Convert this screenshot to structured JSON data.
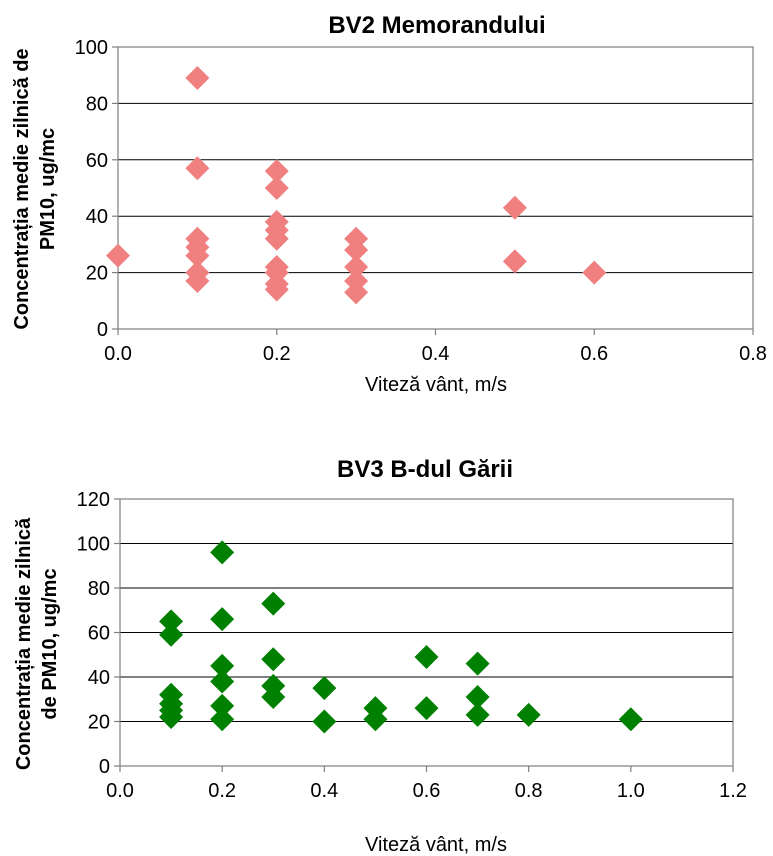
{
  "chart_data": [
    {
      "type": "scatter",
      "title": "BV2 Memorandului",
      "xlabel": "Viteză vânt, m/s",
      "ylabel_lines": [
        "Concentrația medie zilnică de",
        "PM10, ug/mc"
      ],
      "xlim": [
        0,
        0.8
      ],
      "ylim": [
        0,
        100
      ],
      "xticks": [
        "0.0",
        "0.2",
        "0.4",
        "0.6",
        "0.8"
      ],
      "yticks": [
        "0",
        "20",
        "40",
        "60",
        "80",
        "100"
      ],
      "grid": "horizontal",
      "marker": "diamond",
      "color": "#f08080",
      "points": [
        {
          "x": 0.0,
          "y": 26
        },
        {
          "x": 0.1,
          "y": 89
        },
        {
          "x": 0.1,
          "y": 57
        },
        {
          "x": 0.1,
          "y": 32
        },
        {
          "x": 0.1,
          "y": 29
        },
        {
          "x": 0.1,
          "y": 26
        },
        {
          "x": 0.1,
          "y": 20
        },
        {
          "x": 0.1,
          "y": 17
        },
        {
          "x": 0.2,
          "y": 56
        },
        {
          "x": 0.2,
          "y": 50
        },
        {
          "x": 0.2,
          "y": 38
        },
        {
          "x": 0.2,
          "y": 35
        },
        {
          "x": 0.2,
          "y": 32
        },
        {
          "x": 0.2,
          "y": 22
        },
        {
          "x": 0.2,
          "y": 20
        },
        {
          "x": 0.2,
          "y": 16
        },
        {
          "x": 0.2,
          "y": 14
        },
        {
          "x": 0.3,
          "y": 32
        },
        {
          "x": 0.3,
          "y": 28
        },
        {
          "x": 0.3,
          "y": 22
        },
        {
          "x": 0.3,
          "y": 17
        },
        {
          "x": 0.3,
          "y": 13
        },
        {
          "x": 0.5,
          "y": 43
        },
        {
          "x": 0.5,
          "y": 24
        },
        {
          "x": 0.6,
          "y": 20
        }
      ]
    },
    {
      "type": "scatter",
      "title": "BV3 B-dul Gării",
      "xlabel": "Viteză vânt, m/s",
      "ylabel_lines": [
        "Concentrația medie zilnică",
        "de PM10, ug/mc"
      ],
      "xlim": [
        0,
        1.2
      ],
      "ylim": [
        0,
        120
      ],
      "xticks": [
        "0.0",
        "0.2",
        "0.4",
        "0.6",
        "0.8",
        "1.0",
        "1.2"
      ],
      "yticks": [
        "0",
        "20",
        "40",
        "60",
        "80",
        "100",
        "120"
      ],
      "grid": "horizontal",
      "marker": "diamond",
      "color": "#008000",
      "points": [
        {
          "x": 0.1,
          "y": 65
        },
        {
          "x": 0.1,
          "y": 59
        },
        {
          "x": 0.1,
          "y": 32
        },
        {
          "x": 0.1,
          "y": 28
        },
        {
          "x": 0.1,
          "y": 25
        },
        {
          "x": 0.1,
          "y": 22
        },
        {
          "x": 0.2,
          "y": 96
        },
        {
          "x": 0.2,
          "y": 66
        },
        {
          "x": 0.2,
          "y": 45
        },
        {
          "x": 0.2,
          "y": 38
        },
        {
          "x": 0.2,
          "y": 27
        },
        {
          "x": 0.2,
          "y": 21
        },
        {
          "x": 0.3,
          "y": 73
        },
        {
          "x": 0.3,
          "y": 48
        },
        {
          "x": 0.3,
          "y": 36
        },
        {
          "x": 0.3,
          "y": 31
        },
        {
          "x": 0.4,
          "y": 35
        },
        {
          "x": 0.4,
          "y": 20
        },
        {
          "x": 0.5,
          "y": 26
        },
        {
          "x": 0.5,
          "y": 21
        },
        {
          "x": 0.6,
          "y": 49
        },
        {
          "x": 0.6,
          "y": 26
        },
        {
          "x": 0.7,
          "y": 46
        },
        {
          "x": 0.7,
          "y": 31
        },
        {
          "x": 0.7,
          "y": 23
        },
        {
          "x": 0.8,
          "y": 23
        },
        {
          "x": 1.0,
          "y": 21
        }
      ]
    }
  ]
}
